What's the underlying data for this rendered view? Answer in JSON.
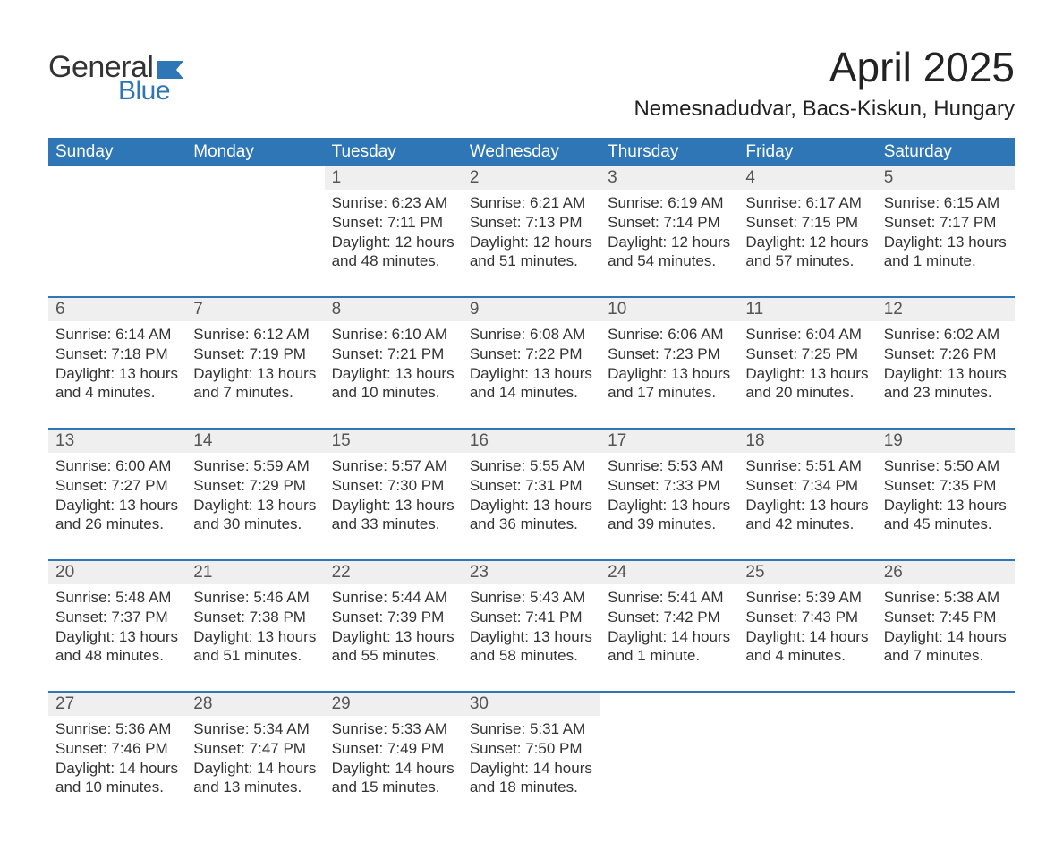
{
  "logo": {
    "word1": "General",
    "word2": "Blue",
    "flag_color": "#2e76b6"
  },
  "title": "April 2025",
  "location": "Nemesnadudvar, Bacs-Kiskun, Hungary",
  "colors": {
    "header_bg": "#2e76b6",
    "header_text": "#ffffff",
    "daynum_bg": "#efefef",
    "daynum_text": "#555555",
    "body_text": "#333333",
    "page_bg": "#ffffff"
  },
  "day_headers": [
    "Sunday",
    "Monday",
    "Tuesday",
    "Wednesday",
    "Thursday",
    "Friday",
    "Saturday"
  ],
  "weeks": [
    [
      null,
      null,
      {
        "n": "1",
        "sunrise": "6:23 AM",
        "sunset": "7:11 PM",
        "daylight": "12 hours and 48 minutes."
      },
      {
        "n": "2",
        "sunrise": "6:21 AM",
        "sunset": "7:13 PM",
        "daylight": "12 hours and 51 minutes."
      },
      {
        "n": "3",
        "sunrise": "6:19 AM",
        "sunset": "7:14 PM",
        "daylight": "12 hours and 54 minutes."
      },
      {
        "n": "4",
        "sunrise": "6:17 AM",
        "sunset": "7:15 PM",
        "daylight": "12 hours and 57 minutes."
      },
      {
        "n": "5",
        "sunrise": "6:15 AM",
        "sunset": "7:17 PM",
        "daylight": "13 hours and 1 minute."
      }
    ],
    [
      {
        "n": "6",
        "sunrise": "6:14 AM",
        "sunset": "7:18 PM",
        "daylight": "13 hours and 4 minutes."
      },
      {
        "n": "7",
        "sunrise": "6:12 AM",
        "sunset": "7:19 PM",
        "daylight": "13 hours and 7 minutes."
      },
      {
        "n": "8",
        "sunrise": "6:10 AM",
        "sunset": "7:21 PM",
        "daylight": "13 hours and 10 minutes."
      },
      {
        "n": "9",
        "sunrise": "6:08 AM",
        "sunset": "7:22 PM",
        "daylight": "13 hours and 14 minutes."
      },
      {
        "n": "10",
        "sunrise": "6:06 AM",
        "sunset": "7:23 PM",
        "daylight": "13 hours and 17 minutes."
      },
      {
        "n": "11",
        "sunrise": "6:04 AM",
        "sunset": "7:25 PM",
        "daylight": "13 hours and 20 minutes."
      },
      {
        "n": "12",
        "sunrise": "6:02 AM",
        "sunset": "7:26 PM",
        "daylight": "13 hours and 23 minutes."
      }
    ],
    [
      {
        "n": "13",
        "sunrise": "6:00 AM",
        "sunset": "7:27 PM",
        "daylight": "13 hours and 26 minutes."
      },
      {
        "n": "14",
        "sunrise": "5:59 AM",
        "sunset": "7:29 PM",
        "daylight": "13 hours and 30 minutes."
      },
      {
        "n": "15",
        "sunrise": "5:57 AM",
        "sunset": "7:30 PM",
        "daylight": "13 hours and 33 minutes."
      },
      {
        "n": "16",
        "sunrise": "5:55 AM",
        "sunset": "7:31 PM",
        "daylight": "13 hours and 36 minutes."
      },
      {
        "n": "17",
        "sunrise": "5:53 AM",
        "sunset": "7:33 PM",
        "daylight": "13 hours and 39 minutes."
      },
      {
        "n": "18",
        "sunrise": "5:51 AM",
        "sunset": "7:34 PM",
        "daylight": "13 hours and 42 minutes."
      },
      {
        "n": "19",
        "sunrise": "5:50 AM",
        "sunset": "7:35 PM",
        "daylight": "13 hours and 45 minutes."
      }
    ],
    [
      {
        "n": "20",
        "sunrise": "5:48 AM",
        "sunset": "7:37 PM",
        "daylight": "13 hours and 48 minutes."
      },
      {
        "n": "21",
        "sunrise": "5:46 AM",
        "sunset": "7:38 PM",
        "daylight": "13 hours and 51 minutes."
      },
      {
        "n": "22",
        "sunrise": "5:44 AM",
        "sunset": "7:39 PM",
        "daylight": "13 hours and 55 minutes."
      },
      {
        "n": "23",
        "sunrise": "5:43 AM",
        "sunset": "7:41 PM",
        "daylight": "13 hours and 58 minutes."
      },
      {
        "n": "24",
        "sunrise": "5:41 AM",
        "sunset": "7:42 PM",
        "daylight": "14 hours and 1 minute."
      },
      {
        "n": "25",
        "sunrise": "5:39 AM",
        "sunset": "7:43 PM",
        "daylight": "14 hours and 4 minutes."
      },
      {
        "n": "26",
        "sunrise": "5:38 AM",
        "sunset": "7:45 PM",
        "daylight": "14 hours and 7 minutes."
      }
    ],
    [
      {
        "n": "27",
        "sunrise": "5:36 AM",
        "sunset": "7:46 PM",
        "daylight": "14 hours and 10 minutes."
      },
      {
        "n": "28",
        "sunrise": "5:34 AM",
        "sunset": "7:47 PM",
        "daylight": "14 hours and 13 minutes."
      },
      {
        "n": "29",
        "sunrise": "5:33 AM",
        "sunset": "7:49 PM",
        "daylight": "14 hours and 15 minutes."
      },
      {
        "n": "30",
        "sunrise": "5:31 AM",
        "sunset": "7:50 PM",
        "daylight": "14 hours and 18 minutes."
      },
      null,
      null,
      null
    ]
  ],
  "labels": {
    "sunrise": "Sunrise: ",
    "sunset": "Sunset: ",
    "daylight": "Daylight: "
  }
}
